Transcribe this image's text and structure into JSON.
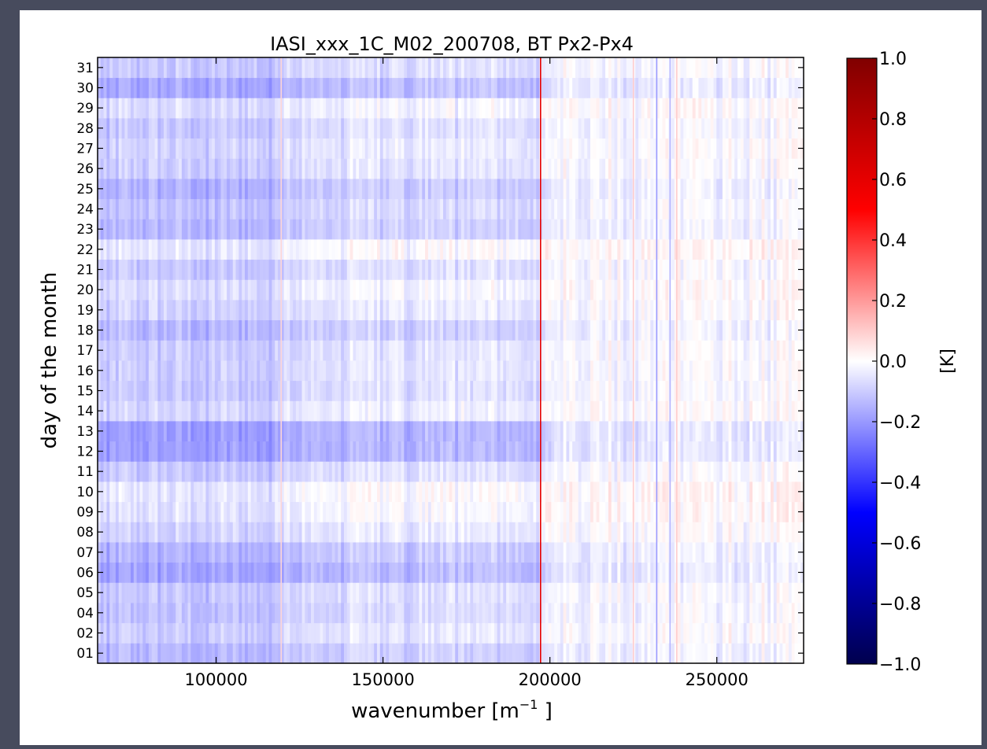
{
  "chart_data": {
    "type": "heatmap",
    "title": "IASI_xxx_1C_M02_200708, BT Px2-Px4",
    "xlabel": "wavenumber [m",
    "xlabel_sup": "−1",
    "xlabel_suffix": " ]",
    "ylabel": "day of the month",
    "xlim": [
      64500,
      276000
    ],
    "x_ticks": [
      100000,
      150000,
      200000,
      250000
    ],
    "x_tick_labels": [
      "100000",
      "150000",
      "200000",
      "250000"
    ],
    "y_rows": [
      "01",
      "02",
      "04",
      "05",
      "06",
      "07",
      "08",
      "09",
      "10",
      "11",
      "12",
      "13",
      "14",
      "15",
      "16",
      "17",
      "18",
      "19",
      "20",
      "21",
      "22",
      "23",
      "24",
      "25",
      "26",
      "27",
      "28",
      "29",
      "30",
      "31"
    ],
    "row_offsets": [
      -0.08,
      -0.04,
      -0.06,
      -0.05,
      -0.12,
      -0.09,
      -0.03,
      0.0,
      0.01,
      -0.05,
      -0.13,
      -0.13,
      -0.02,
      -0.05,
      -0.04,
      -0.04,
      -0.08,
      -0.03,
      -0.01,
      -0.05,
      0.01,
      -0.08,
      -0.06,
      -0.09,
      -0.04,
      -0.03,
      -0.05,
      -0.01,
      -0.11,
      -0.05
    ],
    "column_bands": [
      {
        "x0": 64500,
        "x1": 118000,
        "offset": -0.06
      },
      {
        "x0": 118000,
        "x1": 135000,
        "offset": -0.03
      },
      {
        "x0": 135000,
        "x1": 197000,
        "offset": -0.01
      },
      {
        "x0": 197000,
        "x1": 232000,
        "offset": 0.01
      },
      {
        "x0": 232000,
        "x1": 276000,
        "offset": 0.02
      }
    ],
    "strong_lines": [
      {
        "x": 197200,
        "value": 0.6
      },
      {
        "x": 119500,
        "value": 0.08
      },
      {
        "x": 225000,
        "value": 0.1
      },
      {
        "x": 232000,
        "value": -0.2
      },
      {
        "x": 236000,
        "value": -0.15
      },
      {
        "x": 238000,
        "value": 0.1
      }
    ],
    "colorbar": {
      "label": "[K]",
      "colormap": "seismic",
      "vmin": -1.0,
      "vmax": 1.0,
      "ticks": [
        1.0,
        0.8,
        0.6,
        0.4,
        0.2,
        0.0,
        -0.2,
        -0.4,
        -0.6,
        -0.8,
        -1.0
      ],
      "tick_labels": [
        "1.0",
        "0.8",
        "0.6",
        "0.4",
        "0.2",
        "0.0",
        "−0.2",
        "−0.4",
        "−0.6",
        "−0.8",
        "−1.0"
      ]
    }
  }
}
